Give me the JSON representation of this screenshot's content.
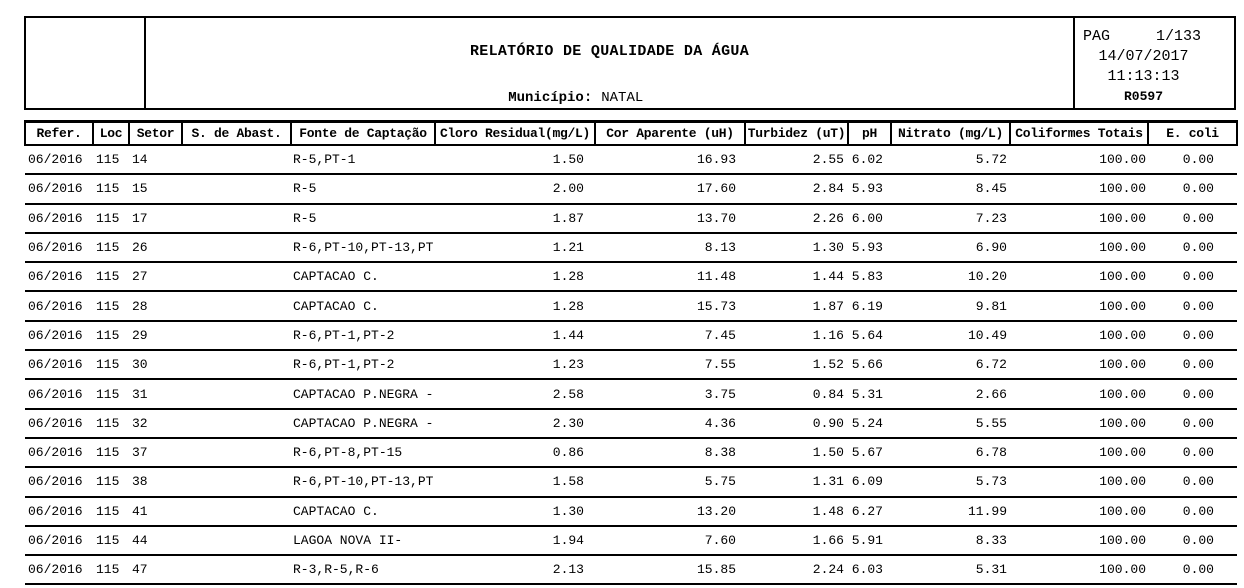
{
  "header": {
    "title": "RELATÓRIO DE QUALIDADE DA ÁGUA",
    "municipality_label": "Município:",
    "municipality_value": "NATAL",
    "pag_label": "PAG",
    "page_number": "1/133",
    "date": "14/07/2017",
    "time": "11:13:13",
    "report_code": "R0597"
  },
  "table": {
    "columns": [
      "Refer.",
      "Loc",
      "Setor",
      "S. de Abast.",
      "Fonte de Captação",
      "Cloro Residual(mg/L)",
      "Cor Aparente (uH)",
      "Turbidez (uT)",
      "pH",
      "Nitrato (mg/L)",
      "Coliformes Totais",
      "E. coli"
    ],
    "rows": [
      [
        "06/2016",
        "115",
        "14",
        "",
        "R-5,PT-1",
        "1.50",
        "16.93",
        "2.55",
        "6.02",
        "5.72",
        "100.00",
        "0.00"
      ],
      [
        "06/2016",
        "115",
        "15",
        "",
        "R-5",
        "2.00",
        "17.60",
        "2.84",
        "5.93",
        "8.45",
        "100.00",
        "0.00"
      ],
      [
        "06/2016",
        "115",
        "17",
        "",
        "R-5",
        "1.87",
        "13.70",
        "2.26",
        "6.00",
        "7.23",
        "100.00",
        "0.00"
      ],
      [
        "06/2016",
        "115",
        "26",
        "",
        "R-6,PT-10,PT-13,PT",
        "1.21",
        "8.13",
        "1.30",
        "5.93",
        "6.90",
        "100.00",
        "0.00"
      ],
      [
        "06/2016",
        "115",
        "27",
        "",
        "CAPTACAO C.",
        "1.28",
        "11.48",
        "1.44",
        "5.83",
        "10.20",
        "100.00",
        "0.00"
      ],
      [
        "06/2016",
        "115",
        "28",
        "",
        "CAPTACAO C.",
        "1.28",
        "15.73",
        "1.87",
        "6.19",
        "9.81",
        "100.00",
        "0.00"
      ],
      [
        "06/2016",
        "115",
        "29",
        "",
        "R-6,PT-1,PT-2",
        "1.44",
        "7.45",
        "1.16",
        "5.64",
        "10.49",
        "100.00",
        "0.00"
      ],
      [
        "06/2016",
        "115",
        "30",
        "",
        "R-6,PT-1,PT-2",
        "1.23",
        "7.55",
        "1.52",
        "5.66",
        "6.72",
        "100.00",
        "0.00"
      ],
      [
        "06/2016",
        "115",
        "31",
        "",
        "CAPTACAO P.NEGRA -",
        "2.58",
        "3.75",
        "0.84",
        "5.31",
        "2.66",
        "100.00",
        "0.00"
      ],
      [
        "06/2016",
        "115",
        "32",
        "",
        "CAPTACAO P.NEGRA -",
        "2.30",
        "4.36",
        "0.90",
        "5.24",
        "5.55",
        "100.00",
        "0.00"
      ],
      [
        "06/2016",
        "115",
        "37",
        "",
        "R-6,PT-8,PT-15",
        "0.86",
        "8.38",
        "1.50",
        "5.67",
        "6.78",
        "100.00",
        "0.00"
      ],
      [
        "06/2016",
        "115",
        "38",
        "",
        "R-6,PT-10,PT-13,PT",
        "1.58",
        "5.75",
        "1.31",
        "6.09",
        "5.73",
        "100.00",
        "0.00"
      ],
      [
        "06/2016",
        "115",
        "41",
        "",
        "CAPTACAO C.",
        "1.30",
        "13.20",
        "1.48",
        "6.27",
        "11.99",
        "100.00",
        "0.00"
      ],
      [
        "06/2016",
        "115",
        "44",
        "",
        "LAGOA NOVA II-",
        "1.94",
        "7.60",
        "1.66",
        "5.91",
        "8.33",
        "100.00",
        "0.00"
      ],
      [
        "06/2016",
        "115",
        "47",
        "",
        "R-3,R-5,R-6",
        "2.13",
        "15.85",
        "2.24",
        "6.03",
        "5.31",
        "100.00",
        "0.00"
      ]
    ]
  }
}
